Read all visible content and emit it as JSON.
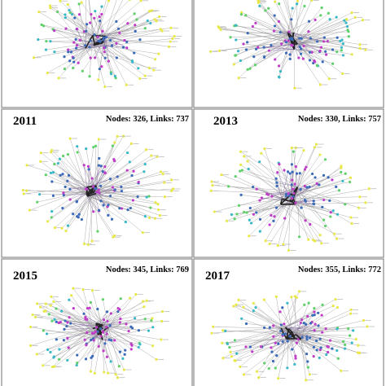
{
  "panels": [
    {
      "year": "2011",
      "stats": "Nodes:  326, Links: 737"
    },
    {
      "year": "2013",
      "stats": "Nodes:  330, Links: 757"
    },
    {
      "year": "2015",
      "stats": "Nodes:  345, Links: 769"
    },
    {
      "year": "2017",
      "stats": "Nodes:  355, Links: 772"
    }
  ]
}
